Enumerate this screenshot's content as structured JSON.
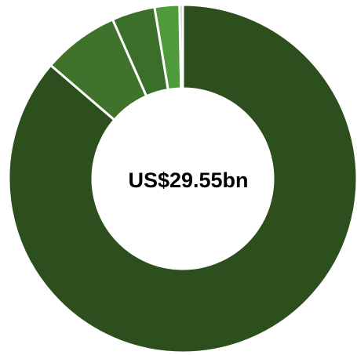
{
  "chart_data": {
    "type": "donut",
    "title": "US$29.55bn",
    "values": [
      86.3,
      7.1,
      4.0,
      2.3,
      0.3
    ],
    "colors": [
      "#2d4f1e",
      "#3f732c",
      "#3b6f29",
      "#4f9b3b",
      "#b8b8b8"
    ]
  }
}
